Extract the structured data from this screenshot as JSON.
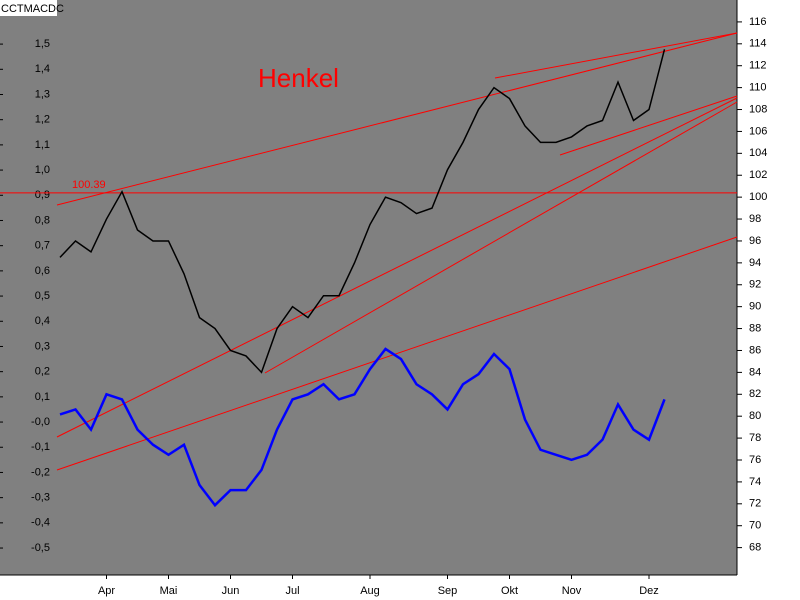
{
  "chart_data": {
    "type": "line",
    "title": "Henkel",
    "indicator_label": "CCTMACDC",
    "categories": [
      null,
      null,
      null,
      "Apr",
      null,
      null,
      null,
      "Mai",
      null,
      null,
      null,
      "Jun",
      null,
      null,
      null,
      "Jul",
      null,
      null,
      null,
      null,
      "Aug",
      null,
      null,
      null,
      null,
      "Sep",
      null,
      null,
      null,
      "Okt",
      null,
      null,
      null,
      "Nov",
      null,
      null,
      null,
      null,
      "Dez",
      null
    ],
    "series": [
      {
        "color": "#0000ff",
        "axis": "y",
        "values": [
          0.03,
          0.05,
          -0.03,
          0.11,
          0.09,
          -0.03,
          -0.09,
          -0.13,
          -0.09,
          -0.25,
          -0.33,
          -0.27,
          -0.27,
          -0.19,
          -0.03,
          0.09,
          0.11,
          0.15,
          0.09,
          0.11,
          0.21,
          0.29,
          0.25,
          0.15,
          0.11,
          0.05,
          0.15,
          0.19,
          0.27,
          0.21,
          0.01,
          -0.11,
          -0.13,
          -0.15,
          -0.13,
          -0.07,
          0.07,
          -0.03,
          -0.07,
          0.09
        ]
      },
      {
        "color": "#000000",
        "axis": "y2",
        "values": [
          94.5,
          96,
          95,
          98,
          100.5,
          97,
          96,
          96,
          93,
          89,
          88,
          86,
          85.5,
          84,
          88,
          90,
          89,
          91,
          91,
          94,
          97.5,
          100,
          99.5,
          98.5,
          99,
          102.5,
          105,
          108,
          110,
          109,
          106.5,
          105,
          105,
          105.5,
          106.5,
          107,
          110.5,
          107,
          108,
          113.5
        ]
      }
    ],
    "hline": {
      "value": 100.39,
      "axis": "y2",
      "color": "#ff0000"
    },
    "ylim": [
      -0.607,
      1.675
    ],
    "yticks": [
      {
        "value": -0.5,
        "label": "-0,5"
      },
      {
        "value": -0.4,
        "label": "-0,4"
      },
      {
        "value": -0.3,
        "label": "-0,3"
      },
      {
        "value": -0.2,
        "label": "-0,2"
      },
      {
        "value": -0.1,
        "label": "-0,1"
      },
      {
        "value": 0,
        "label": "-0,0"
      },
      {
        "value": 0.1,
        "label": "0,1"
      },
      {
        "value": 0.2,
        "label": "0,2"
      },
      {
        "value": 0.3,
        "label": "0,3"
      },
      {
        "value": 0.4,
        "label": "0,4"
      },
      {
        "value": 0.5,
        "label": "0,5"
      },
      {
        "value": 0.6,
        "label": "0,6"
      },
      {
        "value": 0.7,
        "label": "0,7"
      },
      {
        "value": 0.8,
        "label": "0,8"
      },
      {
        "value": 0.9,
        "label": "0,9"
      },
      {
        "value": 1.0,
        "label": "1,0"
      },
      {
        "value": 1.1,
        "label": "1,1"
      },
      {
        "value": 1.2,
        "label": "1,2"
      },
      {
        "value": 1.3,
        "label": "1,3"
      },
      {
        "value": 1.4,
        "label": "1,4"
      },
      {
        "value": 1.5,
        "label": "1,5"
      }
    ],
    "y2lim": [
      65.5,
      118
    ],
    "y2ticks": [
      68,
      70,
      72,
      74,
      76,
      78,
      80,
      82,
      84,
      86,
      88,
      90,
      92,
      94,
      96,
      98,
      100,
      102,
      104,
      106,
      108,
      110,
      112,
      114,
      116
    ]
  }
}
